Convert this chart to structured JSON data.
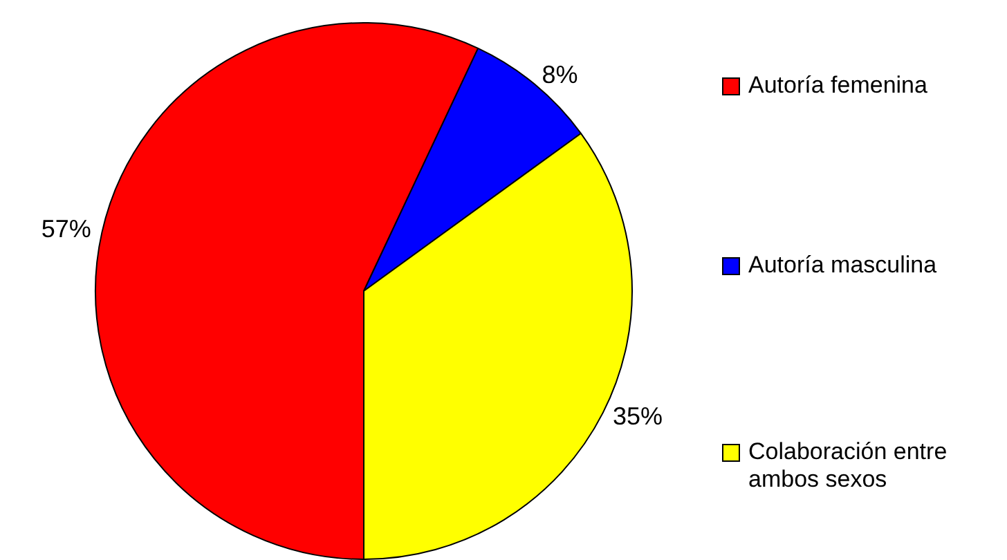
{
  "chart_data": {
    "type": "pie",
    "categories": [
      "Autoría femenina",
      "Autoría masculina",
      "Colaboración entre ambos sexos"
    ],
    "values": [
      57,
      8,
      35
    ],
    "colors": [
      "#ff0000",
      "#0000ff",
      "#ffff00"
    ],
    "value_labels": [
      "57%",
      "8%",
      "35%"
    ],
    "legend": "right"
  }
}
